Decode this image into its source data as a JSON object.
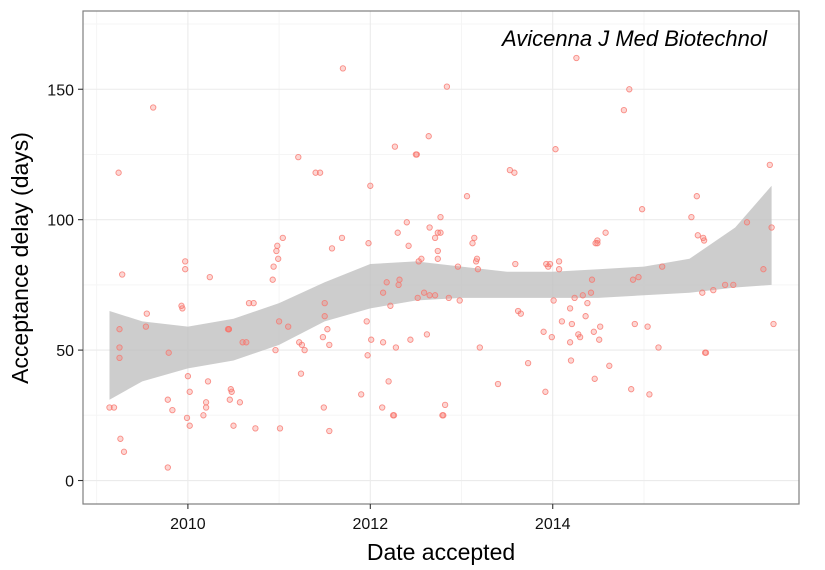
{
  "chart_data": {
    "type": "scatter",
    "title": "",
    "annotation": "Avicenna J Med Biotechnol",
    "xlabel": "Date accepted",
    "ylabel": "Acceptance delay (days)",
    "x_unit": "year",
    "xlim": [
      2008.85,
      2016.7
    ],
    "ylim": [
      -9,
      180
    ],
    "x_ticks": [
      2010,
      2012,
      2014
    ],
    "x_tick_labels": [
      "2010",
      "2012",
      "2014"
    ],
    "y_ticks": [
      0,
      50,
      100,
      150
    ],
    "y_tick_labels": [
      "0",
      "50",
      "100",
      "150"
    ],
    "grid": true,
    "legend": "none",
    "colors": {
      "point": "#f8766d",
      "ribbon": "#bfbfbf",
      "panel_border": "#7f7f7f",
      "grid_major": "#ebebeb",
      "grid_minor": "#f5f5f5"
    },
    "series": [
      {
        "values": [
          [
            2009.14,
            28
          ],
          [
            2009.19,
            28
          ],
          [
            2009.24,
            118
          ],
          [
            2009.25,
            51
          ],
          [
            2009.25,
            58
          ],
          [
            2009.25,
            47
          ],
          [
            2009.26,
            16
          ],
          [
            2009.28,
            79
          ],
          [
            2009.3,
            11
          ],
          [
            2009.54,
            59
          ],
          [
            2009.55,
            64
          ],
          [
            2009.62,
            143
          ],
          [
            2009.78,
            5
          ],
          [
            2009.78,
            31
          ],
          [
            2009.79,
            49
          ],
          [
            2009.83,
            27
          ],
          [
            2009.93,
            67
          ],
          [
            2009.94,
            66
          ],
          [
            2009.97,
            81
          ],
          [
            2009.97,
            84
          ],
          [
            2009.99,
            24
          ],
          [
            2010.0,
            40
          ],
          [
            2010.02,
            21
          ],
          [
            2010.02,
            34
          ],
          [
            2010.17,
            25
          ],
          [
            2010.2,
            28
          ],
          [
            2010.2,
            30
          ],
          [
            2010.22,
            38
          ],
          [
            2010.24,
            78
          ],
          [
            2010.44,
            58
          ],
          [
            2010.45,
            58
          ],
          [
            2010.45,
            58
          ],
          [
            2010.46,
            31
          ],
          [
            2010.47,
            35
          ],
          [
            2010.48,
            34
          ],
          [
            2010.5,
            21
          ],
          [
            2010.57,
            30
          ],
          [
            2010.6,
            53
          ],
          [
            2010.64,
            53
          ],
          [
            2010.67,
            68
          ],
          [
            2010.72,
            68
          ],
          [
            2010.74,
            20
          ],
          [
            2010.93,
            77
          ],
          [
            2010.94,
            82
          ],
          [
            2010.96,
            50
          ],
          [
            2010.97,
            88
          ],
          [
            2010.98,
            90
          ],
          [
            2010.99,
            85
          ],
          [
            2011.0,
            61
          ],
          [
            2011.01,
            20
          ],
          [
            2011.04,
            93
          ],
          [
            2011.1,
            59
          ],
          [
            2011.21,
            124
          ],
          [
            2011.22,
            53
          ],
          [
            2011.24,
            41
          ],
          [
            2011.25,
            52
          ],
          [
            2011.28,
            50
          ],
          [
            2011.4,
            118
          ],
          [
            2011.45,
            118
          ],
          [
            2011.48,
            55
          ],
          [
            2011.49,
            28
          ],
          [
            2011.5,
            68
          ],
          [
            2011.5,
            63
          ],
          [
            2011.53,
            58
          ],
          [
            2011.55,
            52
          ],
          [
            2011.55,
            19
          ],
          [
            2011.58,
            89
          ],
          [
            2011.69,
            93
          ],
          [
            2011.7,
            158
          ],
          [
            2011.9,
            33
          ],
          [
            2011.96,
            61
          ],
          [
            2011.97,
            48
          ],
          [
            2011.98,
            91
          ],
          [
            2012.0,
            113
          ],
          [
            2012.01,
            54
          ],
          [
            2012.13,
            28
          ],
          [
            2012.14,
            53
          ],
          [
            2012.14,
            72
          ],
          [
            2012.18,
            76
          ],
          [
            2012.2,
            38
          ],
          [
            2012.22,
            67
          ],
          [
            2012.25,
            25
          ],
          [
            2012.26,
            25
          ],
          [
            2012.27,
            128
          ],
          [
            2012.28,
            51
          ],
          [
            2012.3,
            95
          ],
          [
            2012.31,
            75
          ],
          [
            2012.32,
            77
          ],
          [
            2012.4,
            99
          ],
          [
            2012.42,
            90
          ],
          [
            2012.44,
            54
          ],
          [
            2012.5,
            125
          ],
          [
            2012.51,
            125
          ],
          [
            2012.52,
            70
          ],
          [
            2012.53,
            84
          ],
          [
            2012.56,
            85
          ],
          [
            2012.59,
            72
          ],
          [
            2012.62,
            56
          ],
          [
            2012.64,
            132
          ],
          [
            2012.65,
            97
          ],
          [
            2012.65,
            71
          ],
          [
            2012.71,
            71
          ],
          [
            2012.71,
            93
          ],
          [
            2012.74,
            85
          ],
          [
            2012.74,
            88
          ],
          [
            2012.74,
            95
          ],
          [
            2012.77,
            101
          ],
          [
            2012.77,
            95
          ],
          [
            2012.79,
            25
          ],
          [
            2012.8,
            25
          ],
          [
            2012.82,
            29
          ],
          [
            2012.84,
            151
          ],
          [
            2012.86,
            70
          ],
          [
            2012.96,
            82
          ],
          [
            2012.98,
            69
          ],
          [
            2013.06,
            109
          ],
          [
            2013.12,
            91
          ],
          [
            2013.14,
            93
          ],
          [
            2013.16,
            84
          ],
          [
            2013.17,
            85
          ],
          [
            2013.18,
            81
          ],
          [
            2013.2,
            51
          ],
          [
            2013.4,
            37
          ],
          [
            2013.53,
            119
          ],
          [
            2013.58,
            118
          ],
          [
            2013.59,
            83
          ],
          [
            2013.62,
            65
          ],
          [
            2013.65,
            64
          ],
          [
            2013.73,
            45
          ],
          [
            2013.9,
            57
          ],
          [
            2013.92,
            34
          ],
          [
            2013.93,
            83
          ],
          [
            2013.95,
            82
          ],
          [
            2013.97,
            83
          ],
          [
            2013.99,
            55
          ],
          [
            2014.01,
            69
          ],
          [
            2014.03,
            127
          ],
          [
            2014.07,
            81
          ],
          [
            2014.07,
            84
          ],
          [
            2014.1,
            61
          ],
          [
            2014.19,
            53
          ],
          [
            2014.19,
            66
          ],
          [
            2014.2,
            46
          ],
          [
            2014.21,
            60
          ],
          [
            2014.24,
            70
          ],
          [
            2014.26,
            162
          ],
          [
            2014.28,
            56
          ],
          [
            2014.3,
            55
          ],
          [
            2014.33,
            71
          ],
          [
            2014.36,
            63
          ],
          [
            2014.38,
            68
          ],
          [
            2014.42,
            72
          ],
          [
            2014.43,
            77
          ],
          [
            2014.45,
            57
          ],
          [
            2014.46,
            39
          ],
          [
            2014.47,
            91
          ],
          [
            2014.49,
            92
          ],
          [
            2014.49,
            91
          ],
          [
            2014.51,
            54
          ],
          [
            2014.52,
            59
          ],
          [
            2014.58,
            95
          ],
          [
            2014.62,
            44
          ],
          [
            2014.78,
            142
          ],
          [
            2014.84,
            150
          ],
          [
            2014.86,
            35
          ],
          [
            2014.88,
            77
          ],
          [
            2014.9,
            60
          ],
          [
            2014.94,
            78
          ],
          [
            2014.98,
            104
          ],
          [
            2015.04,
            59
          ],
          [
            2015.06,
            33
          ],
          [
            2015.16,
            51
          ],
          [
            2015.2,
            82
          ],
          [
            2015.52,
            101
          ],
          [
            2015.58,
            109
          ],
          [
            2015.59,
            94
          ],
          [
            2015.64,
            72
          ],
          [
            2015.65,
            93
          ],
          [
            2015.66,
            92
          ],
          [
            2015.67,
            49
          ],
          [
            2015.68,
            49
          ],
          [
            2015.76,
            73
          ],
          [
            2015.89,
            75
          ],
          [
            2015.98,
            75
          ],
          [
            2016.13,
            99
          ],
          [
            2016.31,
            81
          ],
          [
            2016.38,
            121
          ],
          [
            2016.4,
            97
          ],
          [
            2016.42,
            60
          ]
        ]
      }
    ],
    "smooth": {
      "x": [
        2009.14,
        2009.5,
        2010.0,
        2010.5,
        2011.0,
        2011.5,
        2012.0,
        2012.5,
        2013.0,
        2013.5,
        2014.0,
        2014.5,
        2015.0,
        2015.5,
        2016.0,
        2016.4
      ],
      "lower": [
        31,
        38,
        43,
        46,
        52,
        61,
        66,
        69,
        70,
        70,
        70,
        70,
        71,
        72,
        74,
        75
      ],
      "upper": [
        65,
        61,
        59,
        62,
        68,
        76,
        83,
        84,
        82,
        80,
        80,
        81,
        82,
        85,
        97,
        113
      ]
    }
  }
}
